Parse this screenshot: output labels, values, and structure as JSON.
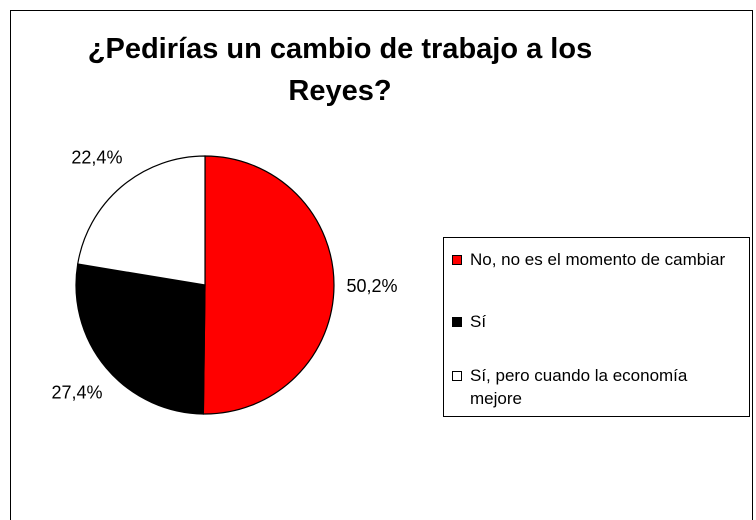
{
  "chart_data": {
    "type": "pie",
    "title": "¿Pedirías un cambio de trabajo a los Reyes?",
    "slices": [
      {
        "label": "No, no es el momento de cambiar",
        "value": 50.2,
        "display": "50,2%",
        "color": "#ff0000"
      },
      {
        "label": "Sí",
        "value": 27.4,
        "display": "27,4%",
        "color": "#000000"
      },
      {
        "label": "Sí, pero cuando la economía mejore",
        "value": 22.4,
        "display": "22,4%",
        "color": "#ffffff"
      }
    ],
    "start_angle_deg": 0,
    "direction": "clockwise",
    "legend": {
      "placement": "right"
    }
  }
}
